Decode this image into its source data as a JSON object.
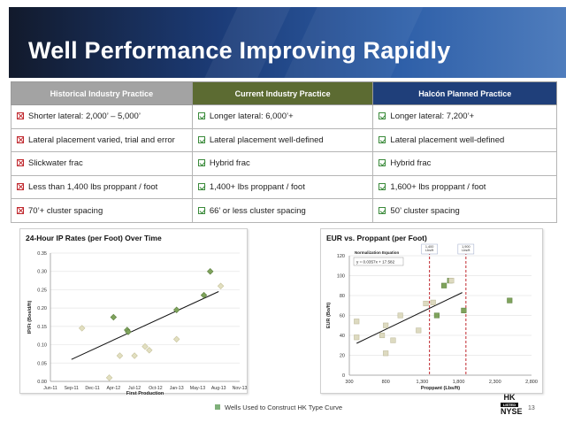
{
  "title": "Well Performance Improving Rapidly",
  "table": {
    "headers": [
      "Historical Industry Practice",
      "Current Industry Practice",
      "Halcón Planned Practice"
    ],
    "rows": [
      [
        "Shorter lateral: 2,000’ – 5,000’",
        "Longer lateral: 6,000’+",
        "Longer lateral: 7,200’+"
      ],
      [
        "Lateral placement varied, trial and error",
        "Lateral placement well-defined",
        "Lateral placement well-defined"
      ],
      [
        "Slickwater frac",
        "Hybrid frac",
        "Hybrid frac"
      ],
      [
        "Less than 1,400 lbs proppant / foot",
        "1,400+ lbs proppant / foot",
        "1,600+ lbs proppant / foot"
      ],
      [
        "70’+ cluster spacing",
        "66’ or less cluster spacing",
        "50’ cluster spacing"
      ]
    ],
    "column_marks": [
      "x-icon",
      "check-icon",
      "check-icon"
    ]
  },
  "chart_data": [
    {
      "type": "scatter",
      "title": "24-Hour IP Rates (per Foot) Over Time",
      "xlabel": "First Production",
      "ylabel": "IP/Ft (Boe/d/ft)",
      "x_ticks": [
        "Jun-11",
        "Sep-11",
        "Dec-11",
        "Apr-12",
        "Jul-12",
        "Oct-12",
        "Jan-13",
        "May-13",
        "Aug-13",
        "Nov-13"
      ],
      "y_ticks": [
        "0.00",
        "0.05",
        "0.10",
        "0.15",
        "0.20",
        "0.25",
        "0.30",
        "0.35"
      ],
      "ylim": [
        0,
        0.35
      ],
      "grid": true,
      "series": [
        {
          "marker": "diamond",
          "color_hk": "#7fa35c",
          "color_other": "#e2dfc0",
          "points": [
            {
              "x": 1.5,
              "y": 0.145,
              "hk": false
            },
            {
              "x": 2.8,
              "y": 0.01,
              "hk": false
            },
            {
              "x": 3.0,
              "y": 0.175,
              "hk": true
            },
            {
              "x": 3.3,
              "y": 0.07,
              "hk": false
            },
            {
              "x": 3.65,
              "y": 0.14,
              "hk": true
            },
            {
              "x": 3.7,
              "y": 0.135,
              "hk": true
            },
            {
              "x": 4.0,
              "y": 0.07,
              "hk": false
            },
            {
              "x": 4.5,
              "y": 0.095,
              "hk": false
            },
            {
              "x": 4.7,
              "y": 0.085,
              "hk": false
            },
            {
              "x": 6.0,
              "y": 0.195,
              "hk": true
            },
            {
              "x": 6.0,
              "y": 0.115,
              "hk": false
            },
            {
              "x": 7.3,
              "y": 0.235,
              "hk": true
            },
            {
              "x": 7.6,
              "y": 0.3,
              "hk": true
            },
            {
              "x": 8.1,
              "y": 0.26,
              "hk": false
            }
          ],
          "trendline": {
            "x": [
              1.0,
              8.0
            ],
            "y": [
              0.06,
              0.245
            ]
          }
        }
      ]
    },
    {
      "type": "scatter",
      "title": "EUR vs. Proppant (per Foot)",
      "xlabel": "Proppant (Lbs/ft)",
      "ylabel": "EUR (Bo/ft)",
      "x_ticks": [
        "300",
        "800",
        "1,300",
        "1,800",
        "2,300",
        "2,800"
      ],
      "y_ticks": [
        "0",
        "20",
        "40",
        "60",
        "80",
        "100",
        "120"
      ],
      "xlim": [
        300,
        2800
      ],
      "ylim": [
        0,
        120
      ],
      "grid": true,
      "annotation": {
        "heading": "Normalization Equation",
        "equation": "y = 0.0357x + 17.582"
      },
      "reference_lines": [
        {
          "x": 1400,
          "label": "1,400 Lbs/ft",
          "color": "#c0272d"
        },
        {
          "x": 1900,
          "label": "1,900 Lbs/ft",
          "color": "#c0272d"
        }
      ],
      "series": [
        {
          "marker": "square",
          "color_hk": "#7fa35c",
          "color_other": "#dddac0",
          "points": [
            {
              "x": 400,
              "y": 38,
              "hk": false
            },
            {
              "x": 400,
              "y": 54,
              "hk": false
            },
            {
              "x": 750,
              "y": 40,
              "hk": false
            },
            {
              "x": 800,
              "y": 50,
              "hk": false
            },
            {
              "x": 800,
              "y": 22,
              "hk": false
            },
            {
              "x": 900,
              "y": 35,
              "hk": false
            },
            {
              "x": 1000,
              "y": 60,
              "hk": false
            },
            {
              "x": 1250,
              "y": 45,
              "hk": false
            },
            {
              "x": 1350,
              "y": 72,
              "hk": false
            },
            {
              "x": 1450,
              "y": 73,
              "hk": false
            },
            {
              "x": 1500,
              "y": 60,
              "hk": true
            },
            {
              "x": 1600,
              "y": 90,
              "hk": true
            },
            {
              "x": 1680,
              "y": 95,
              "hk": true
            },
            {
              "x": 1700,
              "y": 95,
              "hk": false
            },
            {
              "x": 1870,
              "y": 65,
              "hk": true
            },
            {
              "x": 2500,
              "y": 75,
              "hk": true
            }
          ],
          "trendline": {
            "x": [
              400,
              1850
            ],
            "y": [
              32,
              83
            ]
          }
        }
      ]
    }
  ],
  "legend": {
    "label": "Wells Used to Construct HK Type Curve",
    "color": "#7fb07a"
  },
  "ticker": {
    "hk": "HK",
    "listed": "LISTED",
    "nyse": "NYSE"
  },
  "page_number": "13"
}
